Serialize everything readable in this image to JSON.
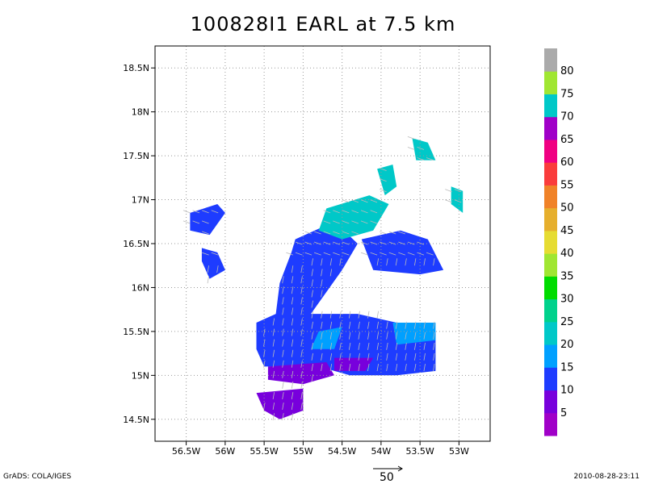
{
  "chart_data": {
    "type": "heatmap",
    "title": "100828I1 EARL at 7.5 km",
    "x_ticks": [
      "56.5W",
      "56W",
      "55.5W",
      "55W",
      "54.5W",
      "54W",
      "53.5W",
      "53W"
    ],
    "y_ticks": [
      "18.5N",
      "18N",
      "17.5N",
      "17N",
      "16.5N",
      "16N",
      "15.5N",
      "15N",
      "14.5N"
    ],
    "xlim": [
      -56.9,
      -52.6
    ],
    "ylim": [
      14.25,
      18.75
    ],
    "colorbar": {
      "labels": [
        "5",
        "10",
        "15",
        "20",
        "25",
        "30",
        "35",
        "40",
        "45",
        "50",
        "55",
        "60",
        "65",
        "70",
        "75",
        "80"
      ],
      "colors": [
        "#a000c8",
        "#7800dc",
        "#1e3cff",
        "#00a0ff",
        "#00c8c8",
        "#00d28c",
        "#00dc00",
        "#a0e632",
        "#e6dc32",
        "#e6af2d",
        "#f08228",
        "#fa3c3c",
        "#f00082",
        "#a000c8",
        "#00c8c8",
        "#a0e632",
        "#aaaaaa"
      ]
    },
    "regions": [
      {
        "value": 12,
        "poly": [
          [
            -56.45,
            16.85
          ],
          [
            -56.1,
            16.95
          ],
          [
            -56.0,
            16.85
          ],
          [
            -56.2,
            16.6
          ],
          [
            -56.45,
            16.65
          ]
        ]
      },
      {
        "value": 12,
        "poly": [
          [
            -56.3,
            16.45
          ],
          [
            -56.1,
            16.4
          ],
          [
            -56.0,
            16.2
          ],
          [
            -56.2,
            16.1
          ],
          [
            -56.3,
            16.3
          ]
        ]
      },
      {
        "value": 12,
        "poly": [
          [
            -55.1,
            16.55
          ],
          [
            -54.6,
            16.75
          ],
          [
            -54.3,
            16.5
          ],
          [
            -54.5,
            16.2
          ],
          [
            -54.9,
            15.7
          ],
          [
            -54.3,
            15.7
          ],
          [
            -53.8,
            15.6
          ],
          [
            -53.3,
            15.5
          ],
          [
            -53.3,
            15.05
          ],
          [
            -53.8,
            15.0
          ],
          [
            -54.4,
            15.0
          ],
          [
            -54.8,
            15.1
          ],
          [
            -55.5,
            15.1
          ],
          [
            -55.6,
            15.3
          ],
          [
            -55.6,
            15.6
          ],
          [
            -55.35,
            15.7
          ],
          [
            -55.3,
            16.05
          ],
          [
            -55.15,
            16.4
          ]
        ]
      },
      {
        "value": 12,
        "poly": [
          [
            -54.25,
            16.55
          ],
          [
            -53.75,
            16.65
          ],
          [
            -53.4,
            16.55
          ],
          [
            -53.2,
            16.2
          ],
          [
            -53.5,
            16.15
          ],
          [
            -54.1,
            16.2
          ]
        ]
      },
      {
        "value": 22,
        "poly": [
          [
            -54.7,
            16.9
          ],
          [
            -54.15,
            17.05
          ],
          [
            -53.9,
            16.95
          ],
          [
            -54.1,
            16.65
          ],
          [
            -54.5,
            16.55
          ],
          [
            -54.8,
            16.65
          ]
        ]
      },
      {
        "value": 22,
        "poly": [
          [
            -54.05,
            17.35
          ],
          [
            -53.85,
            17.4
          ],
          [
            -53.8,
            17.15
          ],
          [
            -53.95,
            17.05
          ]
        ]
      },
      {
        "value": 22,
        "poly": [
          [
            -53.6,
            17.7
          ],
          [
            -53.4,
            17.65
          ],
          [
            -53.3,
            17.45
          ],
          [
            -53.55,
            17.45
          ]
        ]
      },
      {
        "value": 22,
        "poly": [
          [
            -53.1,
            17.15
          ],
          [
            -52.95,
            17.1
          ],
          [
            -52.95,
            16.85
          ],
          [
            -53.1,
            16.95
          ]
        ]
      },
      {
        "value": 18,
        "poly": [
          [
            -53.85,
            15.6
          ],
          [
            -53.3,
            15.6
          ],
          [
            -53.3,
            15.4
          ],
          [
            -53.8,
            15.35
          ]
        ]
      },
      {
        "value": 18,
        "poly": [
          [
            -54.8,
            15.5
          ],
          [
            -54.5,
            15.55
          ],
          [
            -54.6,
            15.3
          ],
          [
            -54.9,
            15.3
          ]
        ]
      },
      {
        "value": 8,
        "poly": [
          [
            -55.45,
            15.1
          ],
          [
            -54.7,
            15.15
          ],
          [
            -54.6,
            15.0
          ],
          [
            -55.0,
            14.9
          ],
          [
            -55.45,
            14.95
          ]
        ]
      },
      {
        "value": 8,
        "poly": [
          [
            -55.6,
            14.8
          ],
          [
            -55.0,
            14.85
          ],
          [
            -55.0,
            14.6
          ],
          [
            -55.3,
            14.5
          ],
          [
            -55.5,
            14.6
          ]
        ]
      },
      {
        "value": 8,
        "poly": [
          [
            -54.6,
            15.2
          ],
          [
            -54.1,
            15.2
          ],
          [
            -54.2,
            15.05
          ],
          [
            -54.6,
            15.05
          ]
        ]
      }
    ],
    "vector_scale": {
      "label": "50"
    }
  },
  "footer": {
    "left": "GrADS: COLA/IGES",
    "right": "2010-08-28-23:11"
  }
}
